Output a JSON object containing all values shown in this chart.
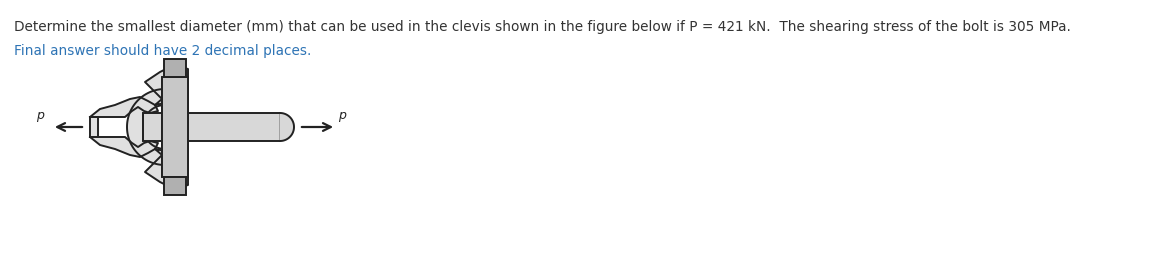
{
  "line1": "Determine the smallest diameter (mm) that can be used in the clevis shown in the figure below if P = 421 kN.  The shearing stress of the bolt is 305 MPa.",
  "line2": "Final answer should have 2 decimal places.",
  "line1_color": "#333333",
  "line2_color": "#2E74B5",
  "bg_color": "#ffffff",
  "font_size_line1": 9.8,
  "font_size_line2": 9.8,
  "figure_width": 11.59,
  "figure_height": 2.72,
  "lc": "#222222",
  "fill_light": "#e0e0e0",
  "fill_mid": "#b8b8b8",
  "fill_dark": "#909090"
}
